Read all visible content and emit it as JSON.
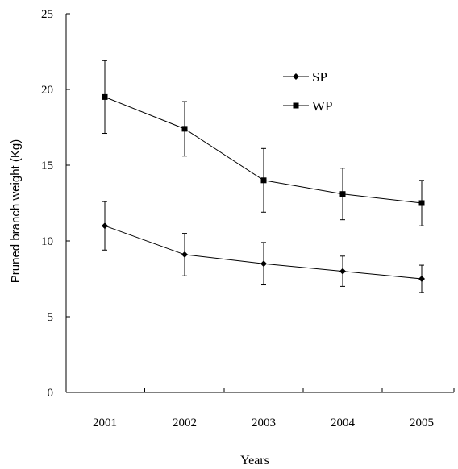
{
  "chart_data": {
    "type": "line",
    "title": "",
    "xlabel": "Years",
    "ylabel": "Pruned branch weight (Kg)",
    "categories": [
      "2001",
      "2002",
      "2003",
      "2004",
      "2005"
    ],
    "ylim": [
      0,
      25
    ],
    "yticks": [
      0,
      5,
      10,
      15,
      20,
      25
    ],
    "legend_position": "top-center",
    "grid": false,
    "series": [
      {
        "name": "SP",
        "marker": "diamond",
        "color": "#000000",
        "values": [
          11.0,
          9.1,
          8.5,
          8.0,
          7.5
        ],
        "error": [
          1.6,
          1.4,
          1.4,
          1.0,
          0.9
        ]
      },
      {
        "name": "WP",
        "marker": "square",
        "color": "#000000",
        "values": [
          19.5,
          17.4,
          14.0,
          13.1,
          12.5
        ],
        "error": [
          2.4,
          1.8,
          2.1,
          1.7,
          1.5
        ]
      }
    ]
  }
}
